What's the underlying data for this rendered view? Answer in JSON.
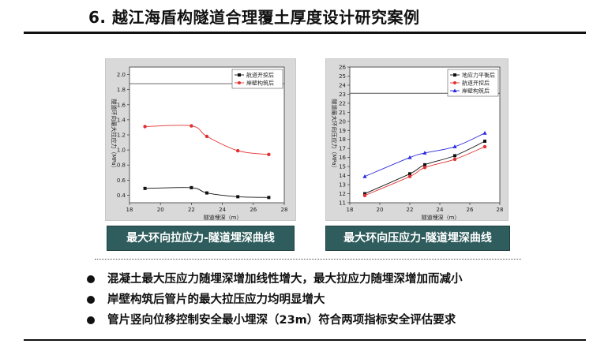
{
  "title": "6. 越江海盾构隧道合理覆土厚度设计研究案例",
  "captions": {
    "left": "最大环向拉应力-隧道埋深曲线",
    "right": "最大环向压应力-隧道埋深曲线"
  },
  "bullets": [
    "混凝土最大压应力随埋深增加线性增大，最大拉应力随埋深增加而减小",
    "岸壁构筑后管片的最大拉压应力均明显增大",
    "管片竖向位移控制安全最小埋深（23m）符合两项指标安全评估要求"
  ],
  "colors": {
    "caption_bg": "#2f5c5c",
    "series_black": "#111111",
    "series_red": "#e23030",
    "series_blue": "#2a2adf"
  },
  "chart_data": [
    {
      "type": "line",
      "xlabel": "隧道埋深（m）",
      "ylabel": "隧道环向最大拉应力（MPa）",
      "xlim": [
        18,
        28
      ],
      "ylim": [
        0.3,
        2.1
      ],
      "xticks": [
        18,
        20,
        22,
        24,
        26,
        28
      ],
      "yticks": [
        0.4,
        0.6,
        0.8,
        1.0,
        1.2,
        1.4,
        1.6,
        1.8,
        2.0
      ],
      "legend_position": "top-right",
      "reference_line": 1.88,
      "series": [
        {
          "name": "航道开挖后",
          "color": "#111111",
          "marker": "square",
          "x": [
            19,
            22,
            23,
            25,
            27
          ],
          "y": [
            0.49,
            0.5,
            0.43,
            0.38,
            0.37
          ]
        },
        {
          "name": "岸壁构筑后",
          "color": "#e23030",
          "marker": "circle",
          "x": [
            19,
            22,
            23,
            25,
            27
          ],
          "y": [
            1.31,
            1.32,
            1.18,
            0.99,
            0.94
          ]
        }
      ]
    },
    {
      "type": "line",
      "xlabel": "隧道埋深（m）",
      "ylabel": "隧道最大环向压应力（MPa）",
      "xlim": [
        18,
        28
      ],
      "ylim": [
        11,
        26
      ],
      "xticks": [
        18,
        20,
        22,
        24,
        26,
        28
      ],
      "yticks": [
        11,
        12,
        13,
        14,
        15,
        16,
        17,
        18,
        19,
        20,
        21,
        22,
        23,
        24,
        25,
        26
      ],
      "legend_position": "top-right",
      "reference_line": 23.1,
      "series": [
        {
          "name": "地应力平衡后",
          "color": "#111111",
          "marker": "square",
          "x": [
            19,
            22,
            23,
            25,
            27
          ],
          "y": [
            12.0,
            14.2,
            15.2,
            16.2,
            17.8
          ]
        },
        {
          "name": "航道开挖后",
          "color": "#e23030",
          "marker": "circle",
          "x": [
            19,
            22,
            23,
            25,
            27
          ],
          "y": [
            11.8,
            13.9,
            14.9,
            15.8,
            17.2
          ]
        },
        {
          "name": "岸壁构筑后",
          "color": "#2a2adf",
          "marker": "triangle",
          "x": [
            19,
            22,
            23,
            25,
            27
          ],
          "y": [
            13.9,
            16.0,
            16.5,
            17.2,
            18.7
          ]
        }
      ]
    }
  ]
}
